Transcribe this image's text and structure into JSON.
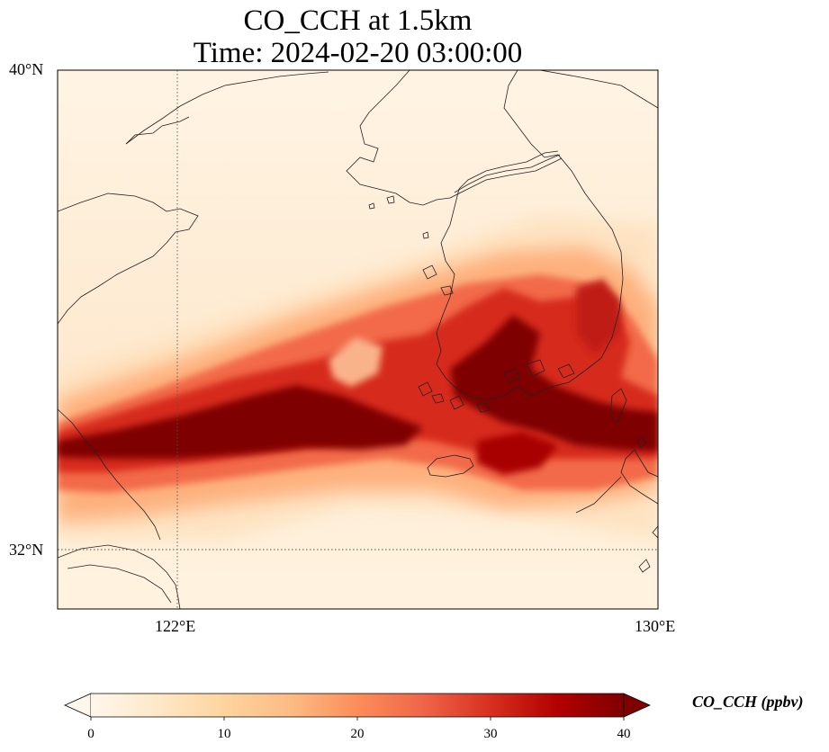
{
  "title": {
    "line1": "CO_CCH at 1.5km",
    "line2": "Time: 2024-02-20 03:00:00"
  },
  "axes": {
    "lat_labels": [
      "40°N",
      "32°N"
    ],
    "lon_labels": [
      "122°E",
      "130°E"
    ],
    "lat_range": [
      31.0,
      40.0
    ],
    "lon_range": [
      120.0,
      130.0
    ],
    "gridlines": {
      "lat": [
        32
      ],
      "lon": [
        122
      ],
      "style": "dotted"
    }
  },
  "colorbar": {
    "label": "CO_CCH (ppbv)",
    "ticks": [
      "0",
      "10",
      "20",
      "30",
      "40"
    ],
    "range": [
      0,
      40
    ],
    "extend": "both",
    "colormap": "OrRd",
    "colors": [
      "#fff7ec",
      "#fee8c8",
      "#fdd49e",
      "#fdbb84",
      "#fc8d59",
      "#ef6548",
      "#d7301f",
      "#b30000",
      "#7f0000"
    ]
  },
  "chart_data": {
    "type": "heatmap",
    "title": "CO_CCH at 1.5km\nTime: 2024-02-20 03:00:00",
    "variable": "CO_CCH",
    "units": "ppbv",
    "level": "1.5km",
    "time": "2024-02-20 03:00:00",
    "xlim": [
      120.0,
      130.0
    ],
    "ylim": [
      31.0,
      40.0
    ],
    "value_range": [
      0,
      40
    ],
    "features": [
      {
        "name": "plume-west",
        "lon": [
          120.0,
          126.0
        ],
        "lat": [
          33.0,
          34.5
        ],
        "max_value": 40
      },
      {
        "name": "plume-east",
        "lon": [
          126.0,
          130.0
        ],
        "lat": [
          33.0,
          35.5
        ],
        "max_value": 40
      },
      {
        "name": "korea-peninsula-band",
        "lon": [
          126.5,
          128.5
        ],
        "lat": [
          34.5,
          36.5
        ],
        "max_value": 35
      }
    ]
  }
}
